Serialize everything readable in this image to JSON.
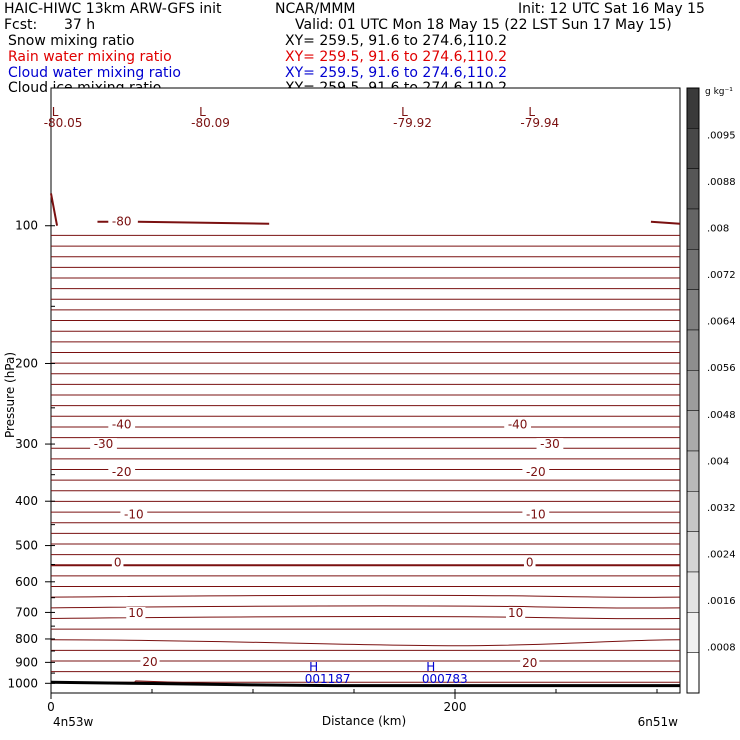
{
  "header": {
    "model": "HAIC-HIWC 13km ARW-GFS init",
    "org": "NCAR/MMM",
    "init": "Init: 12 UTC Sat 16 May 15",
    "fcst_label": "Fcst:",
    "fcst_value": "37 h",
    "valid": "Valid: 01 UTC Mon 18 May 15 (22 LST Sun 17 May 15)",
    "fields": [
      {
        "name": "Snow mixing ratio",
        "xy": "XY= 259.5, 91.6 to 274.6,110.2",
        "color": "#000000"
      },
      {
        "name": "Rain water mixing ratio",
        "xy": "XY= 259.5, 91.6 to 274.6,110.2",
        "color": "#e00000"
      },
      {
        "name": "Cloud water mixing ratio",
        "xy": "XY= 259.5, 91.6 to 274.6,110.2",
        "color": "#0000d0"
      },
      {
        "name": "Cloud ice mixing ratio",
        "xy": "XY= 259.5, 91.6 to 274.6,110.2",
        "color": "#000000"
      }
    ]
  },
  "chart_data": {
    "type": "contour-cross-section",
    "xlabel": "Distance (km)",
    "ylabel": "Pressure (hPa)",
    "x_ticks": [
      0,
      200
    ],
    "x_range_km": [
      0,
      310
    ],
    "y_ticks": [
      100,
      200,
      300,
      400,
      500,
      600,
      700,
      800,
      900,
      1000
    ],
    "y_range_hPa": [
      50,
      1050
    ],
    "y_scale": "log",
    "left_endpoint": "4n53w",
    "right_endpoint": "6n51w",
    "temperature_contour_labels": [
      {
        "value": "-80",
        "x_km": 35,
        "p_hPa": 98
      },
      {
        "value": "-40",
        "x_km": 35,
        "p_hPa": 272
      },
      {
        "value": "-40",
        "x_km": 231,
        "p_hPa": 272
      },
      {
        "value": "-30",
        "x_km": 26,
        "p_hPa": 300
      },
      {
        "value": "-30",
        "x_km": 247,
        "p_hPa": 300
      },
      {
        "value": "-20",
        "x_km": 35,
        "p_hPa": 345
      },
      {
        "value": "-20",
        "x_km": 240,
        "p_hPa": 345
      },
      {
        "value": "-10",
        "x_km": 41,
        "p_hPa": 428
      },
      {
        "value": "-10",
        "x_km": 240,
        "p_hPa": 428
      },
      {
        "value": "0",
        "x_km": 33,
        "p_hPa": 545
      },
      {
        "value": "0",
        "x_km": 237,
        "p_hPa": 545
      },
      {
        "value": "10",
        "x_km": 42,
        "p_hPa": 702
      },
      {
        "value": "10",
        "x_km": 230,
        "p_hPa": 702
      },
      {
        "value": "20",
        "x_km": 49,
        "p_hPa": 898
      },
      {
        "value": "20",
        "x_km": 237,
        "p_hPa": 902
      }
    ],
    "low_markers": [
      {
        "label": "L",
        "value": "-80.05",
        "x_km": 2
      },
      {
        "label": "L",
        "value": "-80.09",
        "x_km": 75
      },
      {
        "label": "L",
        "value": "-79.92",
        "x_km": 175
      },
      {
        "label": "L",
        "value": "-79.94",
        "x_km": 238
      }
    ],
    "high_markers": [
      {
        "label": "H",
        "value": "001187",
        "x_km": 130,
        "p_hPa": 968
      },
      {
        "label": "H",
        "value": "000783",
        "x_km": 188,
        "p_hPa": 968
      }
    ],
    "colorbar": {
      "unit": "g kg⁻¹",
      "labels": [
        ".0095",
        ".0088",
        ".008",
        ".0072",
        ".0064",
        ".0056",
        ".0048",
        ".004",
        ".0032",
        ".0024",
        ".0016",
        ".0008"
      ],
      "gray_levels": [
        "#3a3a3a",
        "#484848",
        "#565656",
        "#646464",
        "#727272",
        "#808080",
        "#8e8e8e",
        "#9c9c9c",
        "#aaaaaa",
        "#b8b8b8",
        "#c6c6c6",
        "#d4d4d4",
        "#e2e2e2",
        "#f0f0f0",
        "#ffffff"
      ]
    },
    "contour_color": "#7a1010",
    "terrain_color": "#000000"
  }
}
